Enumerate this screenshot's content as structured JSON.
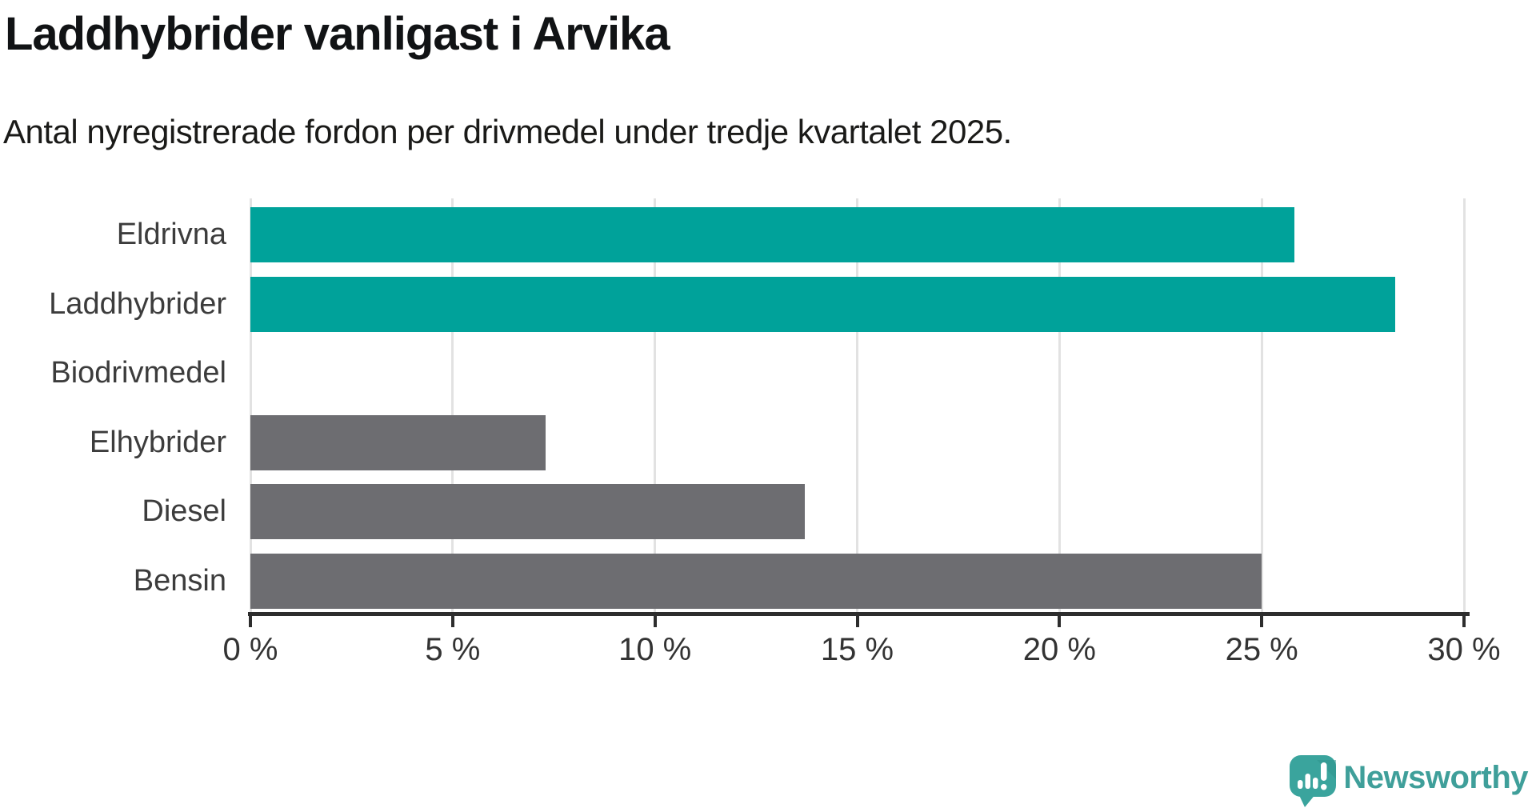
{
  "header": {
    "title": "Laddhybrider vanligast i Arvika",
    "subtitle": "Antal nyregistrerade fordon per drivmedel under tredje kvartalet 2025."
  },
  "chart_data": {
    "type": "bar",
    "orientation": "horizontal",
    "title": "Laddhybrider vanligast i Arvika",
    "subtitle": "Antal nyregistrerade fordon per drivmedel under tredje kvartalet 2025.",
    "categories": [
      "Eldrivna",
      "Laddhybrider",
      "Biodrivmedel",
      "Elhybrider",
      "Diesel",
      "Bensin"
    ],
    "values": [
      25.8,
      28.3,
      0,
      7.3,
      13.7,
      25.0
    ],
    "unit": "%",
    "xlim": [
      0,
      30
    ],
    "x_ticks": [
      0,
      5,
      10,
      15,
      20,
      25,
      30
    ],
    "x_tick_labels": [
      "0 %",
      "5 %",
      "10 %",
      "15 %",
      "20 %",
      "25 %",
      "30 %"
    ],
    "grid": true,
    "legend": "none",
    "colors": {
      "highlight": "#00a29a",
      "default": "#6d6d71",
      "bar_colors": [
        "#00a29a",
        "#00a29a",
        "#6d6d71",
        "#6d6d71",
        "#6d6d71",
        "#6d6d71"
      ],
      "gridline": "#e2e2e2",
      "axis": "#2d2d2d"
    }
  },
  "footer": {
    "brand": "Newsworthy",
    "brand_color": "#3f9f9a",
    "icon_color": "#3aa49d",
    "icon_accent": "#2f938c"
  }
}
